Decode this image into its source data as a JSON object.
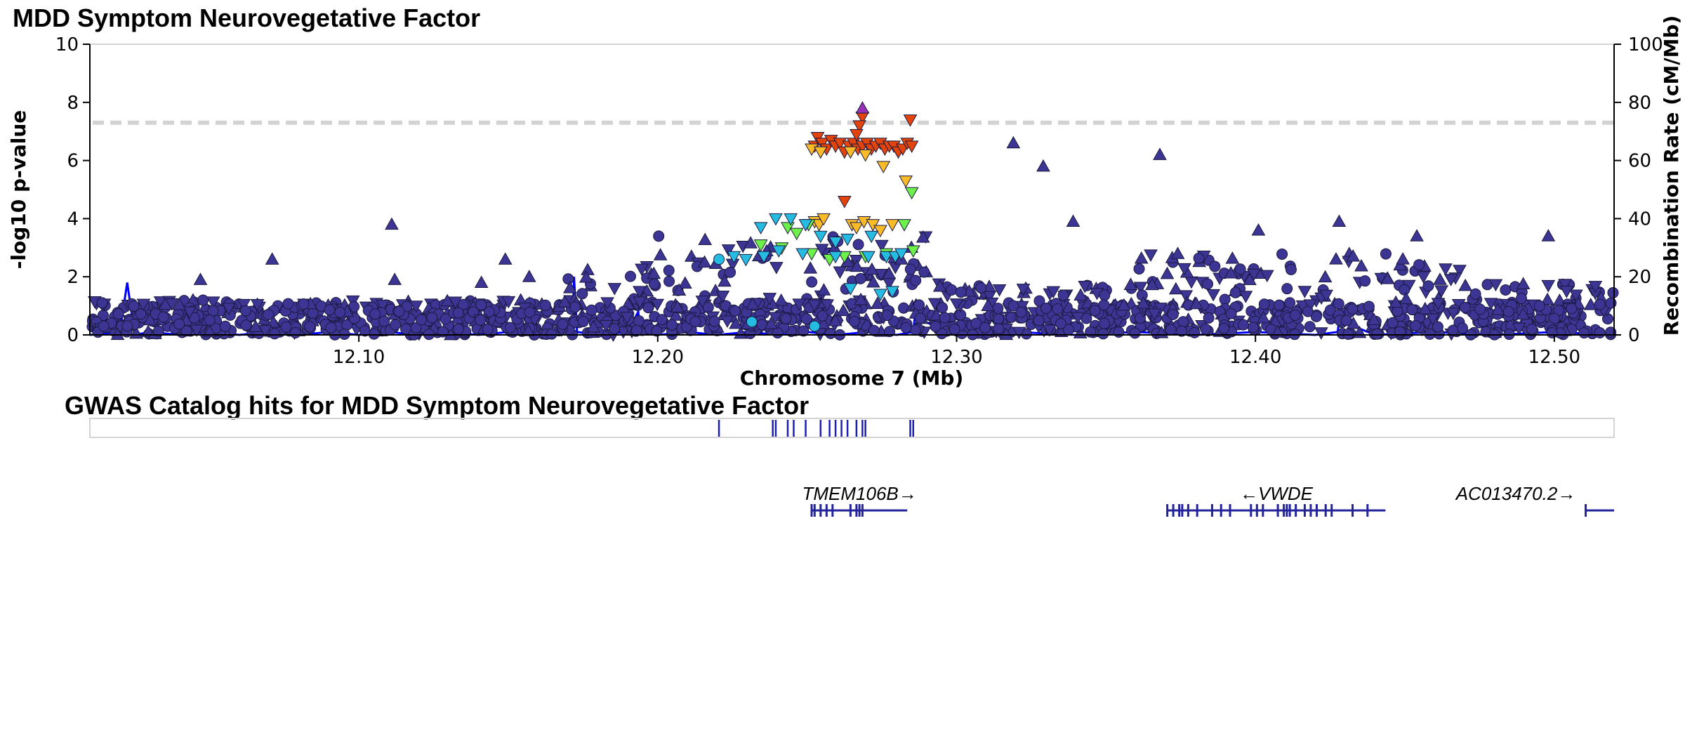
{
  "chart_data": [
    {
      "type": "scatter",
      "subtype": "locuszoom-manhattan",
      "title": "MDD Symptom Neurovegetative Factor",
      "xlabel": "Chromosome 7 (Mb)",
      "ylabel": "-log10 p-value",
      "y2label": "Recombination Rate (cM/Mb)",
      "xlim": [
        12.01,
        12.52
      ],
      "ylim": [
        0,
        10
      ],
      "y2lim": [
        0,
        100
      ],
      "x_ticks": [
        "12.10",
        "12.20",
        "12.30",
        "12.40",
        "12.50"
      ],
      "x_tick_values": [
        12.1,
        12.2,
        12.3,
        12.4,
        12.5
      ],
      "y_ticks": [
        "0",
        "2",
        "4",
        "6",
        "8",
        "10"
      ],
      "y2_ticks": [
        "0",
        "20",
        "40",
        "60",
        "80",
        "100"
      ],
      "significance_line": 7.3,
      "colors": {
        "background_variants": "#3d3594",
        "ld_0_2": "#26bce1",
        "ld_0_4": "#6ef04a",
        "ld_0_6": "#fabb29",
        "ld_0_8": "#e3440b",
        "lead_variant": "#9632b8",
        "recombination": "#0000ff",
        "significance": "#d3d3d3"
      },
      "series": [
        {
          "name": "",
          "color": "#e3440b",
          "shape": "triangle-down",
          "points": [
            [
              12.2525,
              6.5
            ],
            [
              12.2535,
              6.8
            ],
            [
              12.255,
              6.6
            ],
            [
              12.2565,
              6.4
            ],
            [
              12.258,
              6.7
            ],
            [
              12.2595,
              6.5
            ],
            [
              12.261,
              6.6
            ],
            [
              12.2625,
              6.3
            ],
            [
              12.264,
              6.5
            ],
            [
              12.2655,
              6.6
            ],
            [
              12.267,
              6.4
            ],
            [
              12.2685,
              7.5
            ],
            [
              12.2675,
              7.2
            ],
            [
              12.2665,
              6.9
            ],
            [
              12.2685,
              6.5
            ],
            [
              12.27,
              6.6
            ],
            [
              12.2715,
              6.4
            ],
            [
              12.273,
              6.5
            ],
            [
              12.2745,
              6.6
            ],
            [
              12.276,
              6.4
            ],
            [
              12.2775,
              6.5
            ],
            [
              12.279,
              6.5
            ],
            [
              12.2805,
              6.3
            ],
            [
              12.282,
              6.4
            ],
            [
              12.2835,
              6.6
            ],
            [
              12.285,
              6.5
            ],
            [
              12.2845,
              7.4
            ],
            [
              12.2625,
              4.6
            ]
          ]
        },
        {
          "name": "",
          "color": "#fabb29",
          "shape": "triangle-down",
          "points": [
            [
              12.2515,
              6.4
            ],
            [
              12.2545,
              6.3
            ],
            [
              12.2645,
              6.3
            ],
            [
              12.2695,
              6.2
            ],
            [
              12.2755,
              5.8
            ],
            [
              12.283,
              5.3
            ],
            [
              12.2525,
              3.9
            ],
            [
              12.254,
              3.8
            ],
            [
              12.2555,
              4.0
            ],
            [
              12.265,
              3.8
            ],
            [
              12.2665,
              3.7
            ],
            [
              12.269,
              3.9
            ],
            [
              12.272,
              3.8
            ],
            [
              12.2745,
              3.6
            ],
            [
              12.2785,
              3.8
            ]
          ]
        },
        {
          "name": "",
          "color": "#6ef04a",
          "shape": "triangle-down",
          "points": [
            [
              12.285,
              4.9
            ],
            [
              12.2435,
              3.7
            ],
            [
              12.2465,
              3.5
            ],
            [
              12.2505,
              3.8
            ],
            [
              12.2345,
              3.1
            ],
            [
              12.2415,
              3.0
            ],
            [
              12.2515,
              2.8
            ],
            [
              12.2575,
              2.6
            ],
            [
              12.2625,
              2.7
            ],
            [
              12.2695,
              2.7
            ],
            [
              12.2765,
              2.8
            ],
            [
              12.2855,
              2.9
            ],
            [
              12.2825,
              3.8
            ]
          ]
        },
        {
          "name": "",
          "color": "#26bce1",
          "shape": "triangle-down",
          "points": [
            [
              12.2345,
              3.7
            ],
            [
              12.2395,
              4.0
            ],
            [
              12.2445,
              4.0
            ],
            [
              12.2495,
              3.8
            ],
            [
              12.2545,
              3.4
            ],
            [
              12.2595,
              3.2
            ],
            [
              12.2635,
              3.3
            ],
            [
              12.2715,
              3.4
            ],
            [
              12.2255,
              2.7
            ],
            [
              12.2295,
              2.6
            ],
            [
              12.2355,
              2.7
            ],
            [
              12.2405,
              2.9
            ],
            [
              12.2485,
              2.8
            ],
            [
              12.2595,
              2.7
            ],
            [
              12.2645,
              1.6
            ],
            [
              12.2705,
              2.7
            ],
            [
              12.2765,
              2.7
            ],
            [
              12.2795,
              2.7
            ],
            [
              12.2815,
              2.8
            ],
            [
              12.2745,
              1.4
            ],
            [
              12.2785,
              1.5
            ]
          ]
        },
        {
          "name": "",
          "color": "#26bce1",
          "shape": "circle",
          "points": [
            [
              12.2315,
              0.45
            ],
            [
              12.2525,
              0.3
            ],
            [
              12.2205,
              2.6
            ]
          ]
        },
        {
          "name": "",
          "color": "#9632b8",
          "shape": "triangle-up",
          "points": [
            [
              12.2685,
              7.8
            ]
          ]
        }
      ],
      "background_variants": {
        "color": "#3d3594",
        "shapes": [
          "circle",
          "triangle-up",
          "triangle-down"
        ],
        "notable_points": [
          [
            12.111,
            3.8
          ],
          [
            12.071,
            2.6
          ],
          [
            12.047,
            1.9
          ],
          [
            12.112,
            1.9
          ],
          [
            12.149,
            2.6
          ],
          [
            12.157,
            2.0
          ],
          [
            12.141,
            1.8
          ],
          [
            12.319,
            6.6
          ],
          [
            12.329,
            5.8
          ],
          [
            12.368,
            6.2
          ],
          [
            12.339,
            3.9
          ],
          [
            12.428,
            3.9
          ],
          [
            12.401,
            3.6
          ],
          [
            12.454,
            3.4
          ],
          [
            12.498,
            3.4
          ]
        ]
      },
      "recombination_rate": {
        "x": [
          12.01,
          12.02,
          12.0225,
          12.025,
          12.03,
          12.04,
          12.05,
          12.06,
          12.07,
          12.08,
          12.09,
          12.1,
          12.11,
          12.12,
          12.13,
          12.14,
          12.15,
          12.16,
          12.1715,
          12.172,
          12.173,
          12.18,
          12.19,
          12.1935,
          12.194,
          12.2,
          12.21,
          12.22,
          12.23,
          12.2305,
          12.231,
          12.24,
          12.25,
          12.26,
          12.27,
          12.28,
          12.2855,
          12.286,
          12.3,
          12.32,
          12.34,
          12.36,
          12.38,
          12.4,
          12.42,
          12.4275,
          12.428,
          12.44,
          12.46,
          12.48,
          12.5,
          12.52
        ],
        "y": [
          0,
          1,
          18,
          0,
          1,
          0,
          1,
          0,
          1,
          0,
          1,
          0,
          1,
          0,
          1,
          0,
          1,
          0,
          1,
          20,
          1,
          0,
          1,
          8,
          1,
          0,
          1,
          0,
          1,
          9,
          1,
          0,
          1,
          0,
          1,
          0,
          1,
          6,
          0,
          1,
          0,
          1,
          0,
          1,
          0,
          1,
          5,
          0,
          1,
          0,
          1,
          0
        ]
      }
    },
    {
      "type": "track",
      "title": "GWAS Catalog hits for MDD Symptom Neurovegetative Factor",
      "hit_positions": [
        12.2205,
        12.2385,
        12.2395,
        12.2435,
        12.2455,
        12.2495,
        12.2545,
        12.2575,
        12.2595,
        12.2615,
        12.2635,
        12.2665,
        12.2685,
        12.2695,
        12.2845,
        12.2855
      ]
    },
    {
      "type": "gene-track",
      "genes": [
        {
          "label": "TMEM106B→",
          "start": 12.2515,
          "end": 12.2835,
          "exons": [
            12.2515,
            12.2525,
            12.2545,
            12.2565,
            12.2585,
            12.2645,
            12.2665,
            12.2675,
            12.2685
          ]
        },
        {
          "label": "←VWDE",
          "start": 12.3705,
          "end": 12.4435,
          "exons": [
            12.3705,
            12.3725,
            12.3745,
            12.3755,
            12.3775,
            12.3805,
            12.3855,
            12.3885,
            12.3915,
            12.3985,
            12.4005,
            12.4025,
            12.4075,
            12.4095,
            12.4105,
            12.4115,
            12.4135,
            12.4165,
            12.4185,
            12.4205,
            12.4235,
            12.4255,
            12.4325,
            12.4375
          ]
        },
        {
          "label": "AC013470.2→",
          "start": 12.5105,
          "end": 12.52,
          "exons": [
            12.5105
          ]
        }
      ]
    }
  ]
}
